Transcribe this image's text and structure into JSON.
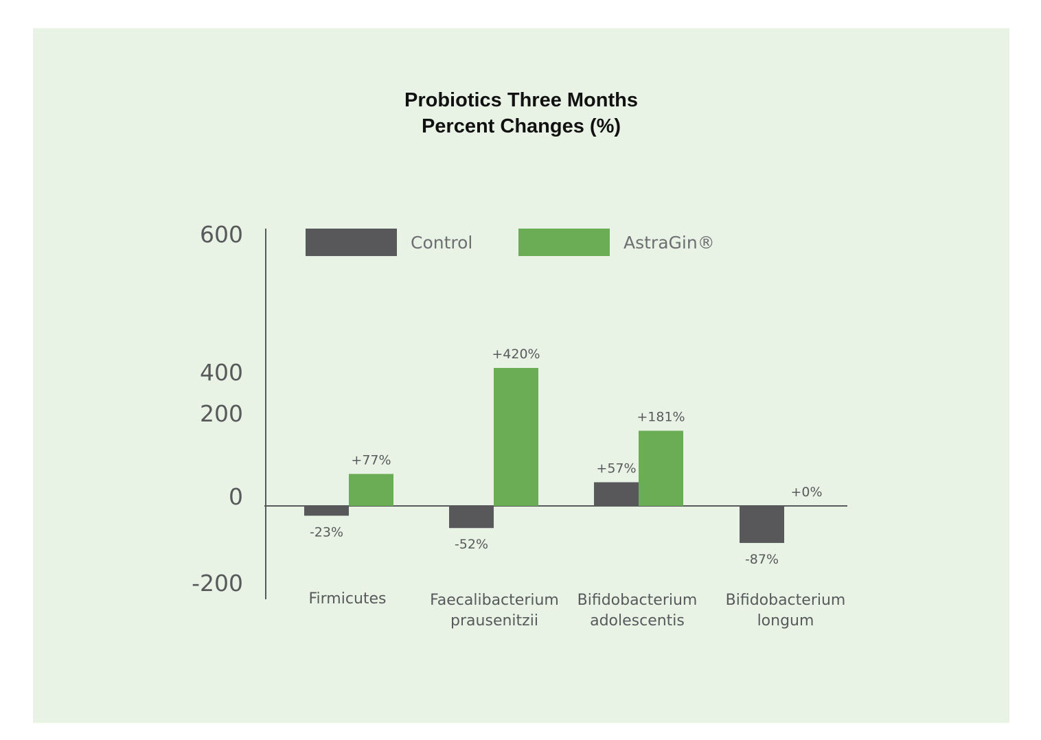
{
  "chart_data": {
    "type": "bar",
    "title": [
      "Probiotics Three Months",
      "Percent Changes (%)"
    ],
    "xlabel": "",
    "ylabel": "",
    "categories": [
      [
        "Firmicutes"
      ],
      [
        "Faecalibacterium",
        "prausenitzii"
      ],
      [
        "Bifidobacterium",
        "adolescentis"
      ],
      [
        "Bifidobacterium",
        "longum"
      ]
    ],
    "series": [
      {
        "name": "Control",
        "color": "#58585a",
        "values": [
          -23,
          -52,
          57,
          -87
        ],
        "labels": [
          "-23%",
          "-52%",
          "+57%",
          "-87%"
        ]
      },
      {
        "name": "AstraGin®",
        "color": "#6aad55",
        "values": [
          77,
          420,
          181,
          0
        ],
        "labels": [
          "+77%",
          "+420%",
          "+181%",
          "+0%"
        ]
      }
    ],
    "yticks": [
      "600",
      "400",
      "200",
      "0",
      "-200"
    ],
    "ylim": [
      -200,
      600
    ],
    "legend_position": "top",
    "grid": false
  }
}
